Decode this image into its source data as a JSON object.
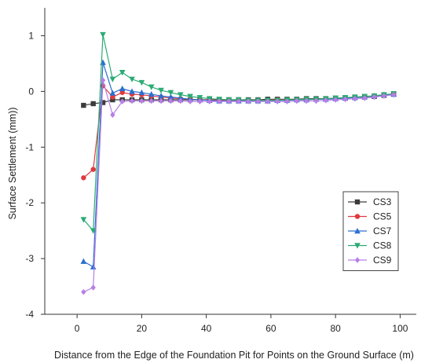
{
  "chart_data": {
    "type": "line",
    "title": "",
    "xlabel": "Distance from the Edge of the Foundation Pit for Points on the Ground Surface (m)",
    "ylabel": "Surface Settlement (mm))",
    "xlim": [
      -10,
      105
    ],
    "ylim": [
      -4,
      1.5
    ],
    "xticks": [
      0,
      20,
      40,
      60,
      80,
      100
    ],
    "xtick_labels": [
      "0",
      "20",
      "40",
      "60",
      "80",
      "100"
    ],
    "yticks": [
      1,
      0,
      -1,
      -2,
      -3,
      -4
    ],
    "ytick_labels": [
      "1",
      "0",
      "-1",
      "-2",
      "-3",
      "-4"
    ],
    "grid": false,
    "legend_position": "bottom-right",
    "x": [
      2,
      5,
      8,
      11,
      14,
      17,
      20,
      23,
      26,
      29,
      32,
      35,
      38,
      41,
      44,
      47,
      50,
      53,
      56,
      59,
      62,
      65,
      68,
      71,
      74,
      77,
      80,
      83,
      86,
      89,
      92,
      95,
      98
    ],
    "series": [
      {
        "name": "CS3",
        "color": "#3c3c3c",
        "marker": "square",
        "values": [
          -0.25,
          -0.22,
          -0.2,
          -0.15,
          -0.15,
          -0.15,
          -0.15,
          -0.15,
          -0.15,
          -0.15,
          -0.15,
          -0.15,
          -0.15,
          -0.15,
          -0.15,
          -0.15,
          -0.15,
          -0.15,
          -0.15,
          -0.14,
          -0.14,
          -0.14,
          -0.14,
          -0.13,
          -0.13,
          -0.13,
          -0.12,
          -0.12,
          -0.11,
          -0.1,
          -0.09,
          -0.07,
          -0.05
        ]
      },
      {
        "name": "CS5",
        "color": "#e0393e",
        "marker": "circle",
        "values": [
          -1.55,
          -1.4,
          0.1,
          -0.1,
          -0.02,
          -0.05,
          -0.06,
          -0.08,
          -0.1,
          -0.12,
          -0.13,
          -0.14,
          -0.15,
          -0.15,
          -0.16,
          -0.16,
          -0.16,
          -0.16,
          -0.16,
          -0.16,
          -0.15,
          -0.15,
          -0.15,
          -0.14,
          -0.14,
          -0.13,
          -0.13,
          -0.12,
          -0.11,
          -0.1,
          -0.08,
          -0.06,
          -0.05
        ]
      },
      {
        "name": "CS7",
        "color": "#2c6fd0",
        "marker": "triangle-up",
        "values": [
          -3.05,
          -3.15,
          0.52,
          -0.03,
          0.05,
          0.0,
          -0.02,
          -0.05,
          -0.08,
          -0.1,
          -0.12,
          -0.14,
          -0.15,
          -0.16,
          -0.17,
          -0.17,
          -0.17,
          -0.17,
          -0.17,
          -0.17,
          -0.16,
          -0.16,
          -0.15,
          -0.15,
          -0.14,
          -0.14,
          -0.13,
          -0.12,
          -0.11,
          -0.1,
          -0.08,
          -0.06,
          -0.05
        ]
      },
      {
        "name": "CS8",
        "color": "#2bab74",
        "marker": "triangle-down",
        "values": [
          -2.3,
          -2.5,
          1.02,
          0.22,
          0.34,
          0.22,
          0.16,
          0.08,
          0.02,
          -0.02,
          -0.06,
          -0.09,
          -0.11,
          -0.13,
          -0.14,
          -0.15,
          -0.15,
          -0.16,
          -0.16,
          -0.16,
          -0.16,
          -0.15,
          -0.15,
          -0.14,
          -0.14,
          -0.13,
          -0.12,
          -0.11,
          -0.1,
          -0.09,
          -0.08,
          -0.06,
          -0.04
        ]
      },
      {
        "name": "CS9",
        "color": "#b77fe6",
        "marker": "diamond",
        "values": [
          -3.6,
          -3.52,
          0.2,
          -0.42,
          -0.18,
          -0.17,
          -0.17,
          -0.17,
          -0.17,
          -0.17,
          -0.17,
          -0.18,
          -0.18,
          -0.18,
          -0.18,
          -0.18,
          -0.18,
          -0.18,
          -0.18,
          -0.18,
          -0.18,
          -0.18,
          -0.17,
          -0.17,
          -0.17,
          -0.16,
          -0.15,
          -0.14,
          -0.13,
          -0.12,
          -0.1,
          -0.08,
          -0.06
        ]
      }
    ]
  }
}
